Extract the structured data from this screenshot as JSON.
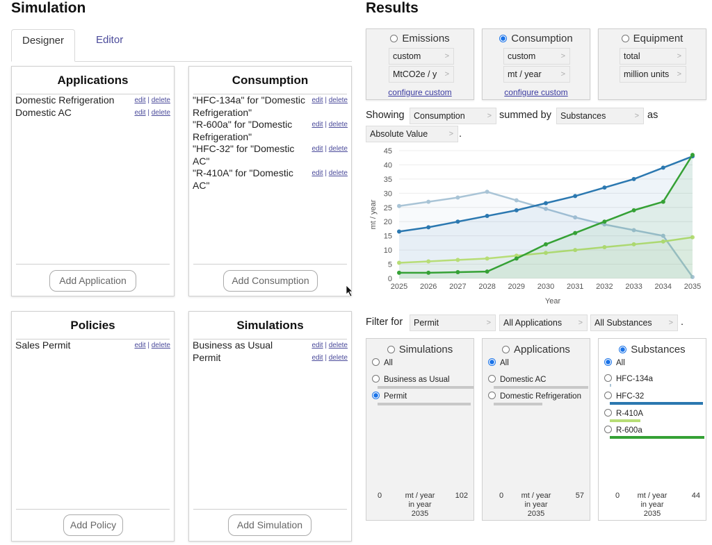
{
  "simulation_title": "Simulation",
  "results_title": "Results",
  "tabs": [
    {
      "label": "Designer"
    },
    {
      "label": "Editor"
    }
  ],
  "actions": {
    "edit": "edit",
    "sep": "|",
    "delete": "delete"
  },
  "applications": {
    "title": "Applications",
    "items": [
      "Domestic Refrigeration",
      "Domestic AC"
    ],
    "add_label": "Add Application"
  },
  "consumption": {
    "title": "Consumption",
    "items": [
      "\"HFC-134a\" for \"Domestic Refrigeration\"",
      "\"R-600a\" for \"Domestic Refrigeration\"",
      "\"HFC-32\" for \"Domestic AC\"",
      "\"R-410A\" for \"Domestic AC\""
    ],
    "add_label": "Add Consumption"
  },
  "policies": {
    "title": "Policies",
    "items": [
      "Sales Permit"
    ],
    "add_label": "Add Policy"
  },
  "simulations": {
    "title": "Simulations",
    "items": [
      "Business as Usual",
      "Permit"
    ],
    "add_label": "Add Simulation"
  },
  "metrics": {
    "emissions": {
      "label": "Emissions",
      "selected": false,
      "sel1": "custom",
      "sel2": "MtCO2e / y",
      "link": "configure custom"
    },
    "consumption": {
      "label": "Consumption",
      "selected": true,
      "sel1": "custom",
      "sel2": "mt / year",
      "link": "configure custom"
    },
    "equipment": {
      "label": "Equipment",
      "selected": false,
      "sel1": "total",
      "sel2": "million units"
    }
  },
  "showing": {
    "prefix": "Showing",
    "metric": "Consumption",
    "summed_by_label": "summed by",
    "grouping": "Substances",
    "as_label": "as",
    "value_type": "Absolute Value",
    "period": "."
  },
  "filter": {
    "prefix": "Filter for",
    "simulation": "Permit",
    "application": "All Applications",
    "substance": "All Substances",
    "period": "."
  },
  "filter_boxes": {
    "simulations": {
      "label": "Simulations",
      "options": [
        {
          "label": "All"
        },
        {
          "label": "Business as Usual"
        },
        {
          "label": "Permit"
        }
      ],
      "foot": {
        "low": "0",
        "unit": "mt / year",
        "in_year": "in year",
        "year": "2035",
        "high": "102"
      }
    },
    "applications": {
      "label": "Applications",
      "options": [
        {
          "label": "All"
        },
        {
          "label": "Domestic AC"
        },
        {
          "label": "Domestic Refrigeration"
        }
      ],
      "foot": {
        "low": "0",
        "unit": "mt / year",
        "in_year": "in year",
        "year": "2035",
        "high": "57"
      }
    },
    "substances": {
      "label": "Substances",
      "options": [
        {
          "label": "All"
        },
        {
          "label": "HFC-134a"
        },
        {
          "label": "HFC-32"
        },
        {
          "label": "R-410A"
        },
        {
          "label": "R-600a"
        }
      ],
      "foot": {
        "low": "0",
        "unit": "mt / year",
        "in_year": "in year",
        "year": "2035",
        "high": "44"
      }
    }
  },
  "colors": {
    "hfc134a": "#a9c4d6",
    "hfc32": "#2b78b0",
    "r410a": "#b7dd76",
    "r600a": "#35a135"
  },
  "chart_data": {
    "type": "line",
    "xlabel": "Year",
    "ylabel": "mt / year",
    "ylim": [
      0,
      45
    ],
    "yticks": [
      0,
      5,
      10,
      15,
      20,
      25,
      30,
      35,
      40,
      45
    ],
    "x": [
      "2025",
      "2026",
      "2027",
      "2028",
      "2029",
      "2030",
      "2031",
      "2032",
      "2033",
      "2034",
      "2035"
    ],
    "series": [
      {
        "key": "hfc134a",
        "values": [
          25.5,
          27,
          28.5,
          30.5,
          27.5,
          24.5,
          21.5,
          19,
          17,
          15,
          0.5
        ]
      },
      {
        "key": "hfc32",
        "values": [
          16.5,
          18,
          20,
          22,
          24,
          26.5,
          29,
          32,
          35,
          39,
          43
        ]
      },
      {
        "key": "r410a",
        "values": [
          5.5,
          6,
          6.5,
          7,
          8,
          9,
          10,
          11,
          12,
          13,
          14.5
        ]
      },
      {
        "key": "r600a",
        "values": [
          2,
          2,
          2.2,
          2.4,
          7,
          12,
          16,
          20,
          24,
          27,
          43.5
        ]
      }
    ]
  }
}
